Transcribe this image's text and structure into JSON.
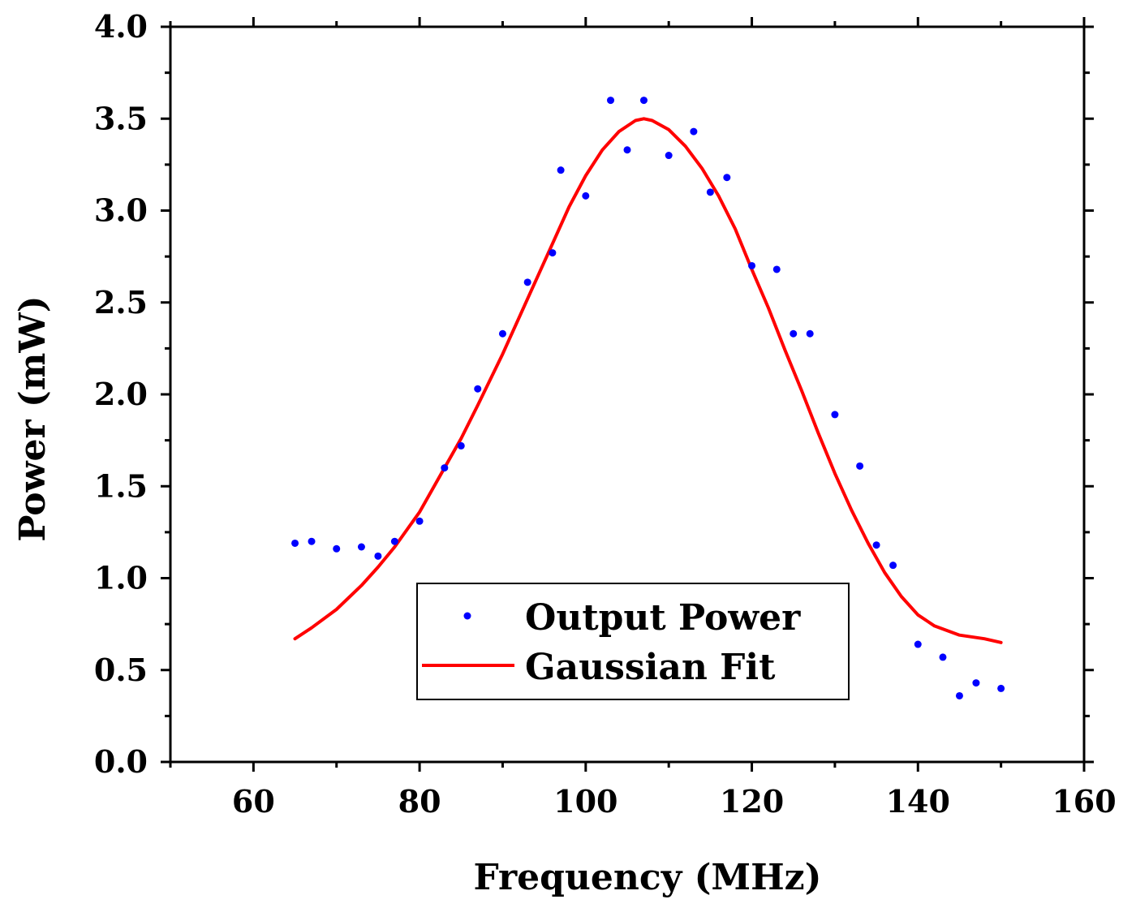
{
  "chart_data": {
    "type": "scatter",
    "title": "",
    "xlabel": "Frequency (MHz)",
    "ylabel": "Power (mW)",
    "xlim": [
      50,
      160
    ],
    "ylim": [
      0.0,
      4.0
    ],
    "x_ticks": [
      60,
      80,
      100,
      120,
      140,
      160
    ],
    "x_tick_labels": [
      "60",
      "80",
      "100",
      "120",
      "140",
      "160"
    ],
    "y_ticks": [
      0.0,
      0.5,
      1.0,
      1.5,
      2.0,
      2.5,
      3.0,
      3.5,
      4.0
    ],
    "y_tick_labels": [
      "0.0",
      "0.5",
      "1.0",
      "1.5",
      "2.0",
      "2.5",
      "3.0",
      "3.5",
      "4.0"
    ],
    "grid": false,
    "legend_position": "bottom-center",
    "series": [
      {
        "name": "Output Power",
        "kind": "scatter",
        "color": "#0000ff",
        "points": [
          [
            65,
            1.19
          ],
          [
            67,
            1.2
          ],
          [
            70,
            1.16
          ],
          [
            73,
            1.17
          ],
          [
            75,
            1.12
          ],
          [
            77,
            1.2
          ],
          [
            80,
            1.31
          ],
          [
            83,
            1.6
          ],
          [
            85,
            1.72
          ],
          [
            87,
            2.03
          ],
          [
            90,
            2.33
          ],
          [
            93,
            2.61
          ],
          [
            96,
            2.77
          ],
          [
            97,
            3.22
          ],
          [
            100,
            3.08
          ],
          [
            103,
            3.6
          ],
          [
            105,
            3.33
          ],
          [
            107,
            3.6
          ],
          [
            110,
            3.3
          ],
          [
            113,
            3.43
          ],
          [
            115,
            3.1
          ],
          [
            117,
            3.18
          ],
          [
            120,
            2.7
          ],
          [
            123,
            2.68
          ],
          [
            125,
            2.33
          ],
          [
            127,
            2.33
          ],
          [
            130,
            1.89
          ],
          [
            133,
            1.61
          ],
          [
            135,
            1.18
          ],
          [
            137,
            1.07
          ],
          [
            140,
            0.64
          ],
          [
            143,
            0.57
          ],
          [
            145,
            0.36
          ],
          [
            147,
            0.43
          ],
          [
            150,
            0.4
          ]
        ]
      },
      {
        "name": "Gaussian Fit",
        "kind": "line",
        "color": "#ff0000",
        "points": [
          [
            65,
            0.67
          ],
          [
            67,
            0.73
          ],
          [
            70,
            0.83
          ],
          [
            73,
            0.96
          ],
          [
            75,
            1.06
          ],
          [
            77,
            1.17
          ],
          [
            80,
            1.36
          ],
          [
            83,
            1.6
          ],
          [
            85,
            1.76
          ],
          [
            87,
            1.94
          ],
          [
            90,
            2.22
          ],
          [
            93,
            2.52
          ],
          [
            96,
            2.82
          ],
          [
            98,
            3.02
          ],
          [
            100,
            3.19
          ],
          [
            102,
            3.33
          ],
          [
            104,
            3.43
          ],
          [
            106,
            3.49
          ],
          [
            107,
            3.5
          ],
          [
            108,
            3.49
          ],
          [
            110,
            3.44
          ],
          [
            112,
            3.35
          ],
          [
            114,
            3.23
          ],
          [
            116,
            3.08
          ],
          [
            118,
            2.9
          ],
          [
            120,
            2.68
          ],
          [
            122,
            2.47
          ],
          [
            124,
            2.24
          ],
          [
            126,
            2.02
          ],
          [
            128,
            1.79
          ],
          [
            130,
            1.57
          ],
          [
            132,
            1.37
          ],
          [
            134,
            1.19
          ],
          [
            136,
            1.03
          ],
          [
            138,
            0.9
          ],
          [
            140,
            0.8
          ],
          [
            142,
            0.74
          ],
          [
            145,
            0.69
          ],
          [
            148,
            0.67
          ],
          [
            150,
            0.65
          ]
        ]
      }
    ]
  }
}
